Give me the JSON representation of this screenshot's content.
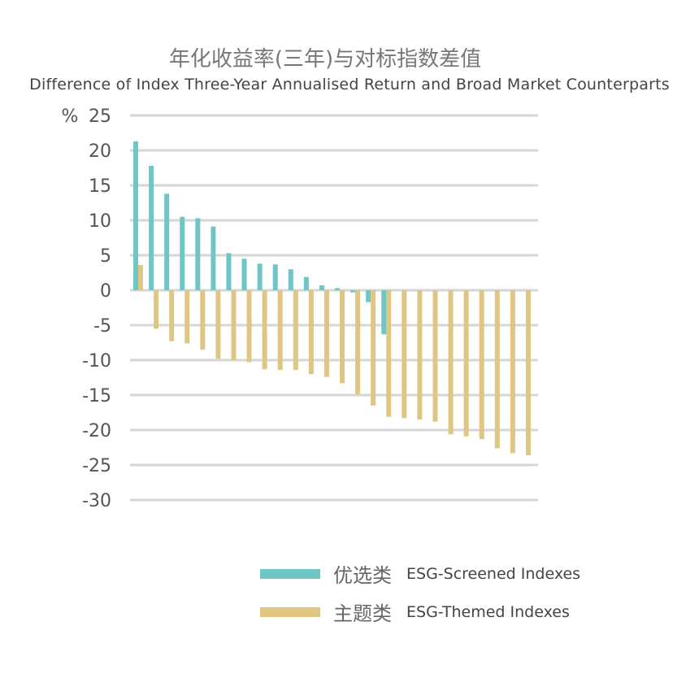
{
  "chart_data": {
    "type": "bar",
    "title": "年化收益率(三年)与对标指数差值",
    "subtitle": "Difference of Index Three-Year Annualised Return and Broad Market Counterparts",
    "ylabel": "%",
    "ylim": [
      -30,
      25
    ],
    "yticks": [
      25,
      20,
      15,
      10,
      5,
      0,
      -5,
      -10,
      -15,
      -20,
      -25,
      -30
    ],
    "ytick_labels": [
      "25",
      "20",
      "15",
      "10",
      "5",
      "0",
      "-5",
      "-10",
      "-15",
      "-20",
      "-25",
      "-30"
    ],
    "grid": true,
    "legend_position": "bottom",
    "category_count": 26,
    "series": [
      {
        "name": "优选类",
        "name_en": "ESG-Screened Indexes",
        "color": "#6EC6C6",
        "values": [
          21.3,
          17.8,
          13.8,
          10.5,
          10.3,
          9.1,
          5.3,
          4.5,
          3.8,
          3.7,
          3.0,
          1.9,
          0.7,
          0.3,
          -0.3,
          -1.7,
          -6.3,
          null,
          null,
          null,
          null,
          null,
          null,
          null,
          null,
          null
        ]
      },
      {
        "name": "主题类",
        "name_en": "ESG-Themed Indexes",
        "color": "#E0C683",
        "values": [
          3.6,
          -5.5,
          -7.3,
          -7.6,
          -8.5,
          -9.8,
          -10.0,
          -10.3,
          -11.3,
          -11.4,
          -11.4,
          -12.0,
          -12.4,
          -13.3,
          -14.9,
          -16.5,
          -18.1,
          -18.3,
          -18.5,
          -18.8,
          -20.6,
          -20.9,
          -21.3,
          -22.6,
          -23.3,
          -23.6
        ]
      }
    ]
  }
}
